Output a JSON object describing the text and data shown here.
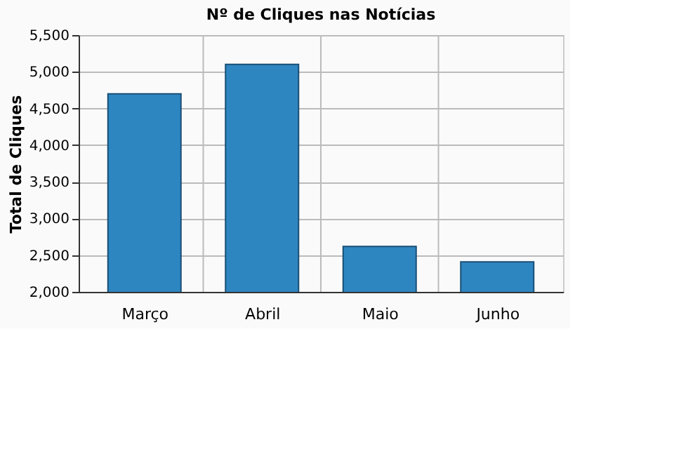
{
  "chart_data": {
    "type": "bar",
    "title": "Nº de Cliques nas Notícias",
    "ylabel": "Total de Cliques",
    "categories": [
      "Março",
      "Abril",
      "Maio",
      "Junho"
    ],
    "values": [
      4700,
      5100,
      2620,
      2410
    ],
    "color": "#2e86c1",
    "ylim": [
      2000,
      5500
    ],
    "yticks": [
      {
        "value": 2000,
        "label": "2,000"
      },
      {
        "value": 2500,
        "label": "2,500"
      },
      {
        "value": 3000,
        "label": "3,000"
      },
      {
        "value": 3500,
        "label": "3,500"
      },
      {
        "value": 4000,
        "label": "4,000"
      },
      {
        "value": 4500,
        "label": "4,500"
      },
      {
        "value": 5000,
        "label": "5,000"
      },
      {
        "value": 5500,
        "label": "5,500"
      }
    ],
    "grid": true
  }
}
